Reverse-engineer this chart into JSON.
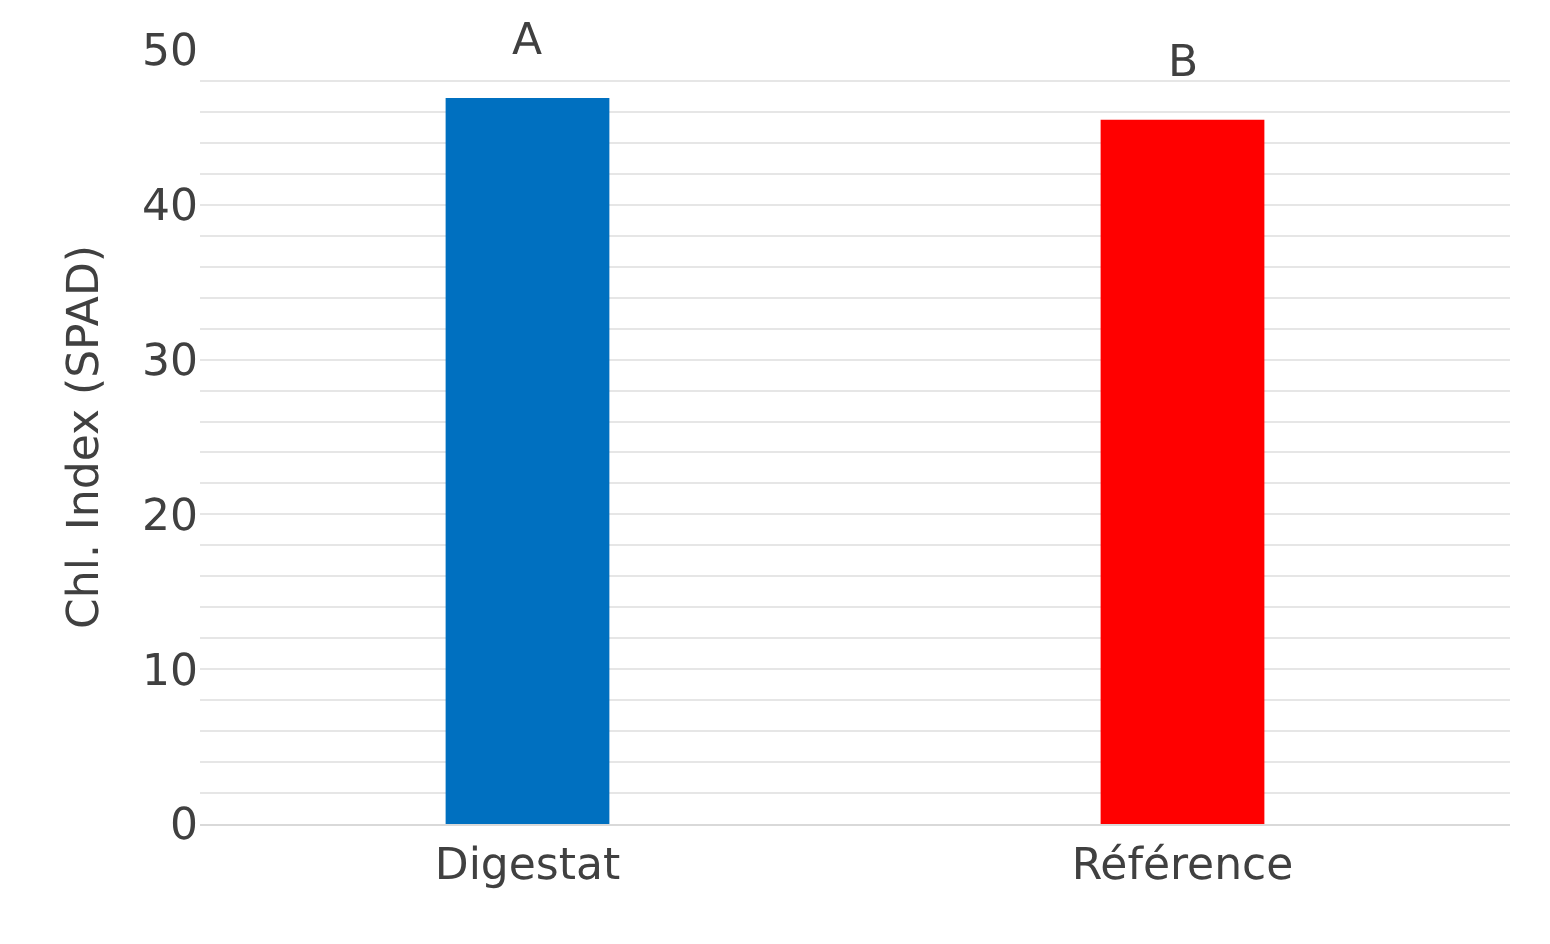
{
  "chart_data": {
    "type": "bar",
    "ylabel": "Chl. Index (SPAD)",
    "categories": [
      "Digestat",
      "Référence"
    ],
    "values": [
      46.9,
      45.5
    ],
    "colors": [
      "#0070c0",
      "#ff0000"
    ],
    "ylim": [
      0,
      50
    ],
    "yticks": [
      0,
      {
        "value": 2,
        "label": null
      },
      {
        "value": 4,
        "label": null
      },
      {
        "value": 6,
        "label": null
      },
      {
        "value": 8,
        "label": null
      },
      10,
      {
        "value": 12,
        "label": null
      },
      {
        "value": 14,
        "label": null
      },
      {
        "value": 16,
        "label": null
      },
      {
        "value": 18,
        "label": null
      },
      20,
      {
        "value": 22,
        "label": null
      },
      {
        "value": 24,
        "label": null
      },
      {
        "value": 26,
        "label": null
      },
      {
        "value": 28,
        "label": null
      },
      30,
      {
        "value": 32,
        "label": null
      },
      {
        "value": 34,
        "label": null
      },
      {
        "value": 36,
        "label": null
      },
      {
        "value": 38,
        "label": null
      },
      40,
      {
        "value": 42,
        "label": null
      },
      {
        "value": 44,
        "label": null
      },
      {
        "value": 46,
        "label": null
      },
      {
        "value": 48,
        "label": null
      },
      50
    ],
    "grid": "y",
    "annotations": [
      {
        "text": "A",
        "x": "Digestat",
        "y": 46.9
      },
      {
        "text": "B",
        "x": "Référence",
        "y": 45.5
      }
    ]
  }
}
